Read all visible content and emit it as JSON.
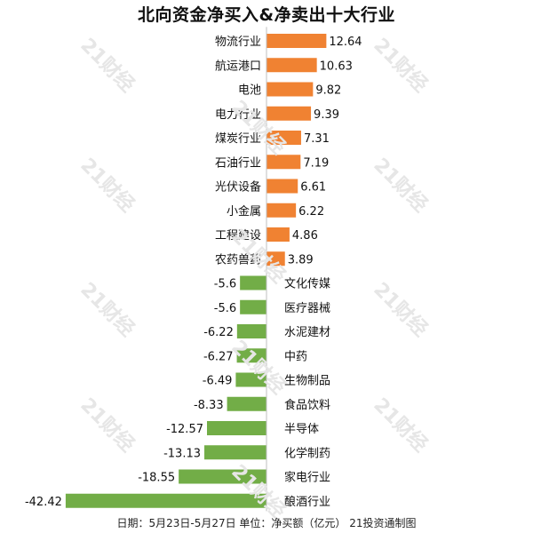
{
  "title": "北向资金净买入&净卖出十大行业",
  "footnote": "日期：5月23日-5月27日 单位：净买额（亿元） 21投资通制图",
  "watermark_text": "21财经",
  "colors": {
    "positive": "#f08232",
    "negative": "#72ad47",
    "axis": "#bfbfbf",
    "text": "#111111"
  },
  "chart_data": {
    "type": "bar",
    "orientation": "horizontal",
    "title": "北向资金净买入&净卖出十大行业",
    "categories": [
      "物流行业",
      "航运港口",
      "电池",
      "电力行业",
      "煤炭行业",
      "石油行业",
      "光伏设备",
      "小金属",
      "工程建设",
      "农药兽药",
      "文化传媒",
      "医疗器械",
      "水泥建材",
      "中药",
      "生物制品",
      "食品饮料",
      "半导体",
      "化学制药",
      "家电行业",
      "酿酒行业"
    ],
    "values": [
      12.64,
      10.63,
      9.82,
      9.39,
      7.31,
      7.19,
      6.61,
      6.22,
      4.86,
      3.89,
      -5.6,
      -5.6,
      -6.22,
      -6.27,
      -6.49,
      -8.33,
      -12.57,
      -13.13,
      -18.55,
      -42.42
    ],
    "value_labels": [
      "12.64",
      "10.63",
      "9.82",
      "9.39",
      "7.31",
      "7.19",
      "6.61",
      "6.22",
      "4.86",
      "3.89",
      "-5.6",
      "-5.6",
      "-6.22",
      "-6.27",
      "-6.49",
      "-8.33",
      "-12.57",
      "-13.13",
      "-18.55",
      "-42.42"
    ],
    "xlim": [
      -42.42,
      12.64
    ],
    "grid": false,
    "legend": "none"
  }
}
